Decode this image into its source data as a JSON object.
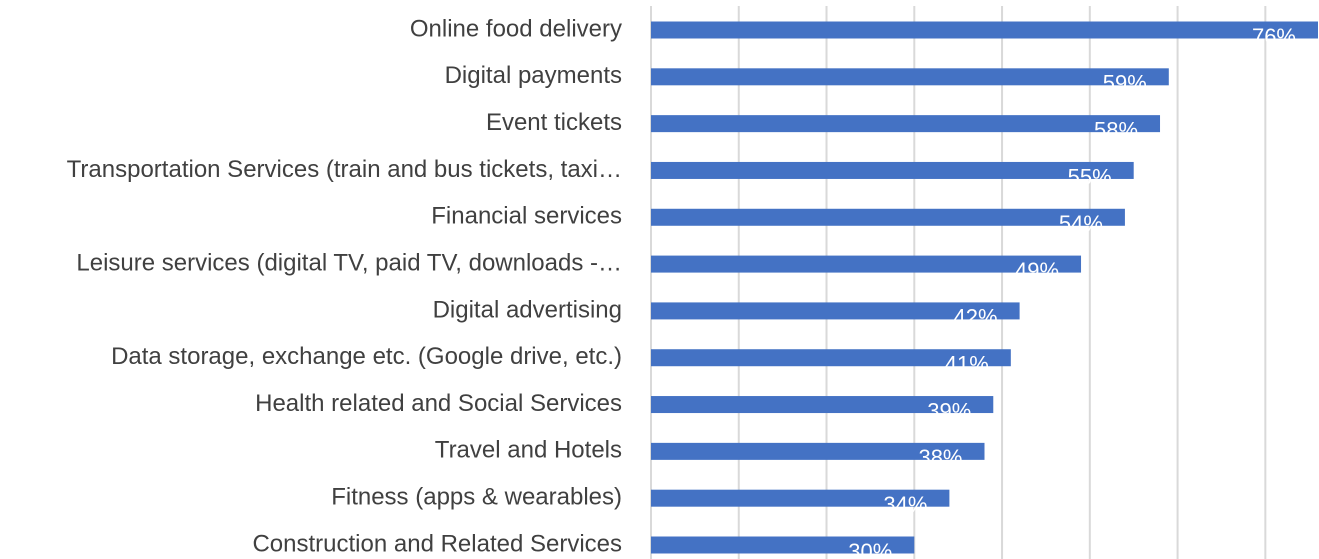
{
  "chart_data": {
    "type": "bar",
    "orientation": "horizontal",
    "categories": [
      "Online food delivery",
      "Digital payments",
      "Event tickets",
      "Transportation Services (train and bus tickets, taxi…",
      "Financial services",
      "Leisure services (digital TV, paid TV, downloads -…",
      "Digital advertising",
      "Data storage, exchange etc. (Google drive, etc.)",
      "Health related and Social Services",
      "Travel and Hotels",
      "Fitness (apps & wearables)",
      "Construction and Related Services"
    ],
    "values": [
      76,
      59,
      58,
      55,
      54,
      49,
      42,
      41,
      39,
      38,
      34,
      30
    ],
    "value_labels": [
      "76%",
      "59%",
      "58%",
      "55%",
      "54%",
      "49%",
      "42%",
      "41%",
      "39%",
      "38%",
      "34%",
      "30%"
    ],
    "color": "#4472c4",
    "xlim": [
      0,
      76
    ],
    "xticks": [
      0,
      10,
      20,
      30,
      40,
      50,
      60,
      70
    ],
    "grid": true
  }
}
